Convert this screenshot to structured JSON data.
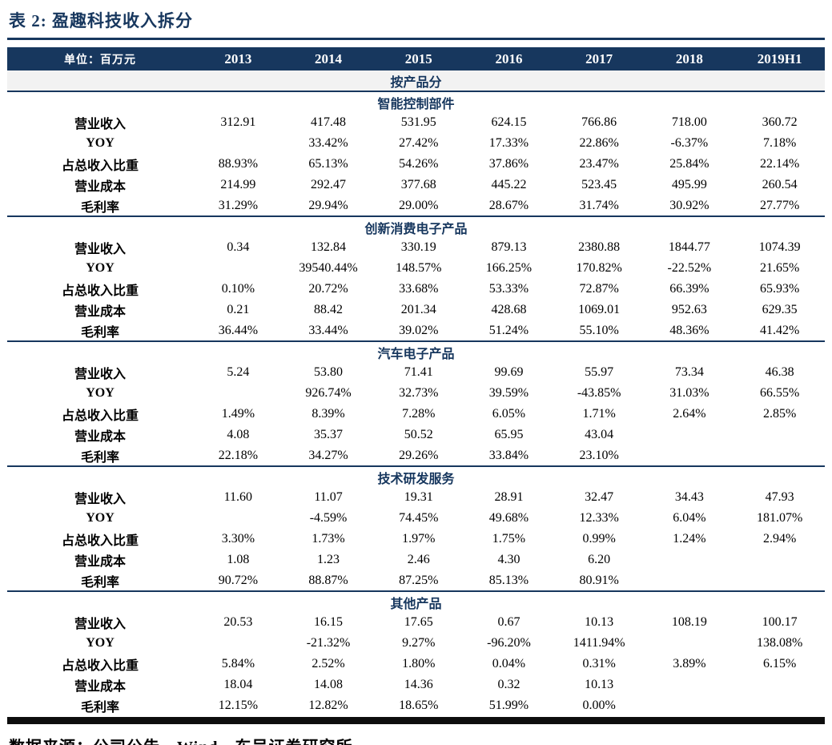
{
  "title": "表 2:  盈趣科技收入拆分",
  "source": "数据来源：公司公告，Wind，东吴证券研究所",
  "table": {
    "unit_label": "单位：百万元",
    "years": [
      "2013",
      "2014",
      "2015",
      "2016",
      "2017",
      "2018",
      "2019H1"
    ],
    "group_header": "按产品分",
    "sections": [
      {
        "name": "智能控制部件",
        "rows": [
          {
            "label": "营业收入",
            "values": [
              "312.91",
              "417.48",
              "531.95",
              "624.15",
              "766.86",
              "718.00",
              "360.72"
            ]
          },
          {
            "label": "YOY",
            "values": [
              "",
              "33.42%",
              "27.42%",
              "17.33%",
              "22.86%",
              "-6.37%",
              "7.18%"
            ]
          },
          {
            "label": "占总收入比重",
            "values": [
              "88.93%",
              "65.13%",
              "54.26%",
              "37.86%",
              "23.47%",
              "25.84%",
              "22.14%"
            ]
          },
          {
            "label": "营业成本",
            "values": [
              "214.99",
              "292.47",
              "377.68",
              "445.22",
              "523.45",
              "495.99",
              "260.54"
            ]
          },
          {
            "label": "毛利率",
            "values": [
              "31.29%",
              "29.94%",
              "29.00%",
              "28.67%",
              "31.74%",
              "30.92%",
              "27.77%"
            ]
          }
        ]
      },
      {
        "name": "创新消费电子产品",
        "rows": [
          {
            "label": "营业收入",
            "values": [
              "0.34",
              "132.84",
              "330.19",
              "879.13",
              "2380.88",
              "1844.77",
              "1074.39"
            ]
          },
          {
            "label": "YOY",
            "values": [
              "",
              "39540.44%",
              "148.57%",
              "166.25%",
              "170.82%",
              "-22.52%",
              "21.65%"
            ]
          },
          {
            "label": "占总收入比重",
            "values": [
              "0.10%",
              "20.72%",
              "33.68%",
              "53.33%",
              "72.87%",
              "66.39%",
              "65.93%"
            ]
          },
          {
            "label": "营业成本",
            "values": [
              "0.21",
              "88.42",
              "201.34",
              "428.68",
              "1069.01",
              "952.63",
              "629.35"
            ]
          },
          {
            "label": "毛利率",
            "values": [
              "36.44%",
              "33.44%",
              "39.02%",
              "51.24%",
              "55.10%",
              "48.36%",
              "41.42%"
            ]
          }
        ]
      },
      {
        "name": "汽车电子产品",
        "rows": [
          {
            "label": "营业收入",
            "values": [
              "5.24",
              "53.80",
              "71.41",
              "99.69",
              "55.97",
              "73.34",
              "46.38"
            ]
          },
          {
            "label": "YOY",
            "values": [
              "",
              "926.74%",
              "32.73%",
              "39.59%",
              "-43.85%",
              "31.03%",
              "66.55%"
            ]
          },
          {
            "label": "占总收入比重",
            "values": [
              "1.49%",
              "8.39%",
              "7.28%",
              "6.05%",
              "1.71%",
              "2.64%",
              "2.85%"
            ]
          },
          {
            "label": "营业成本",
            "values": [
              "4.08",
              "35.37",
              "50.52",
              "65.95",
              "43.04",
              "",
              ""
            ]
          },
          {
            "label": "毛利率",
            "values": [
              "22.18%",
              "34.27%",
              "29.26%",
              "33.84%",
              "23.10%",
              "",
              ""
            ]
          }
        ]
      },
      {
        "name": "技术研发服务",
        "rows": [
          {
            "label": "营业收入",
            "values": [
              "11.60",
              "11.07",
              "19.31",
              "28.91",
              "32.47",
              "34.43",
              "47.93"
            ]
          },
          {
            "label": "YOY",
            "values": [
              "",
              "-4.59%",
              "74.45%",
              "49.68%",
              "12.33%",
              "6.04%",
              "181.07%"
            ]
          },
          {
            "label": "占总收入比重",
            "values": [
              "3.30%",
              "1.73%",
              "1.97%",
              "1.75%",
              "0.99%",
              "1.24%",
              "2.94%"
            ]
          },
          {
            "label": "营业成本",
            "values": [
              "1.08",
              "1.23",
              "2.46",
              "4.30",
              "6.20",
              "",
              ""
            ]
          },
          {
            "label": "毛利率",
            "values": [
              "90.72%",
              "88.87%",
              "87.25%",
              "85.13%",
              "80.91%",
              "",
              ""
            ]
          }
        ]
      },
      {
        "name": "其他产品",
        "rows": [
          {
            "label": "营业收入",
            "values": [
              "20.53",
              "16.15",
              "17.65",
              "0.67",
              "10.13",
              "108.19",
              "100.17"
            ]
          },
          {
            "label": "YOY",
            "values": [
              "",
              "-21.32%",
              "9.27%",
              "-96.20%",
              "1411.94%",
              "",
              "138.08%"
            ]
          },
          {
            "label": "占总收入比重",
            "values": [
              "5.84%",
              "2.52%",
              "1.80%",
              "0.04%",
              "0.31%",
              "3.89%",
              "6.15%"
            ]
          },
          {
            "label": "营业成本",
            "values": [
              "18.04",
              "14.08",
              "14.36",
              "0.32",
              "10.13",
              "",
              ""
            ]
          },
          {
            "label": "毛利率",
            "values": [
              "12.15%",
              "12.82%",
              "18.65%",
              "51.99%",
              "0.00%",
              "",
              ""
            ]
          }
        ]
      }
    ]
  }
}
